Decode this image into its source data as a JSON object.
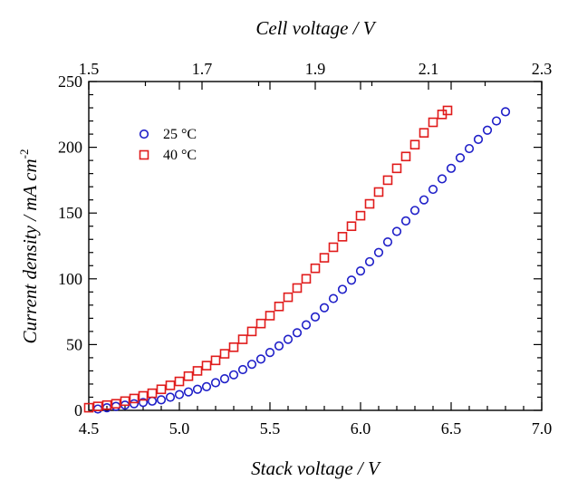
{
  "chart_data": {
    "type": "scatter",
    "xlabel": "Stack voltage / V",
    "x2label": "Cell voltage / V",
    "ylabel": "Current density / mA cm",
    "ylabel_exp": "-2",
    "xlim": [
      4.5,
      7.0
    ],
    "x2lim": [
      1.5,
      2.3
    ],
    "ylim": [
      0,
      250
    ],
    "xticks": [
      "4.5",
      "5.0",
      "5.5",
      "6.0",
      "6.5",
      "7.0"
    ],
    "x2ticks": [
      "1.5",
      "1.7",
      "1.9",
      "2.1",
      "2.3"
    ],
    "yticks": [
      "0",
      "50",
      "100",
      "150",
      "200",
      "250"
    ],
    "grid": false,
    "legend_position": "top-left",
    "series": [
      {
        "name": "25 °C",
        "marker": "circle",
        "color": "#1f1fc8",
        "x": [
          4.55,
          4.6,
          4.65,
          4.7,
          4.75,
          4.8,
          4.85,
          4.9,
          4.95,
          5.0,
          5.05,
          5.1,
          5.15,
          5.2,
          5.25,
          5.3,
          5.35,
          5.4,
          5.45,
          5.5,
          5.55,
          5.6,
          5.65,
          5.7,
          5.75,
          5.8,
          5.85,
          5.9,
          5.95,
          6.0,
          6.05,
          6.1,
          6.15,
          6.2,
          6.25,
          6.3,
          6.35,
          6.4,
          6.45,
          6.5,
          6.55,
          6.6,
          6.65,
          6.7,
          6.75,
          6.8
        ],
        "y": [
          1,
          2,
          3,
          4,
          5,
          6,
          7,
          8,
          10,
          12,
          14,
          16,
          18,
          21,
          24,
          27,
          31,
          35,
          39,
          44,
          49,
          54,
          59,
          65,
          71,
          78,
          85,
          92,
          99,
          106,
          113,
          120,
          128,
          136,
          144,
          152,
          160,
          168,
          176,
          184,
          192,
          199,
          206,
          213,
          220,
          227
        ]
      },
      {
        "name": "40 °C",
        "marker": "square",
        "color": "#e01b1b",
        "x": [
          4.5,
          4.55,
          4.6,
          4.65,
          4.7,
          4.75,
          4.8,
          4.85,
          4.9,
          4.95,
          5.0,
          5.05,
          5.1,
          5.15,
          5.2,
          5.25,
          5.3,
          5.35,
          5.4,
          5.45,
          5.5,
          5.55,
          5.6,
          5.65,
          5.7,
          5.75,
          5.8,
          5.85,
          5.9,
          5.95,
          6.0,
          6.05,
          6.1,
          6.15,
          6.2,
          6.25,
          6.3,
          6.35,
          6.4,
          6.45,
          6.48
        ],
        "y": [
          2,
          3,
          4,
          5,
          7,
          9,
          11,
          13,
          16,
          19,
          22,
          26,
          30,
          34,
          38,
          43,
          48,
          54,
          60,
          66,
          72,
          79,
          86,
          93,
          100,
          108,
          116,
          124,
          132,
          140,
          148,
          157,
          166,
          175,
          184,
          193,
          202,
          211,
          219,
          225,
          228
        ]
      }
    ]
  }
}
